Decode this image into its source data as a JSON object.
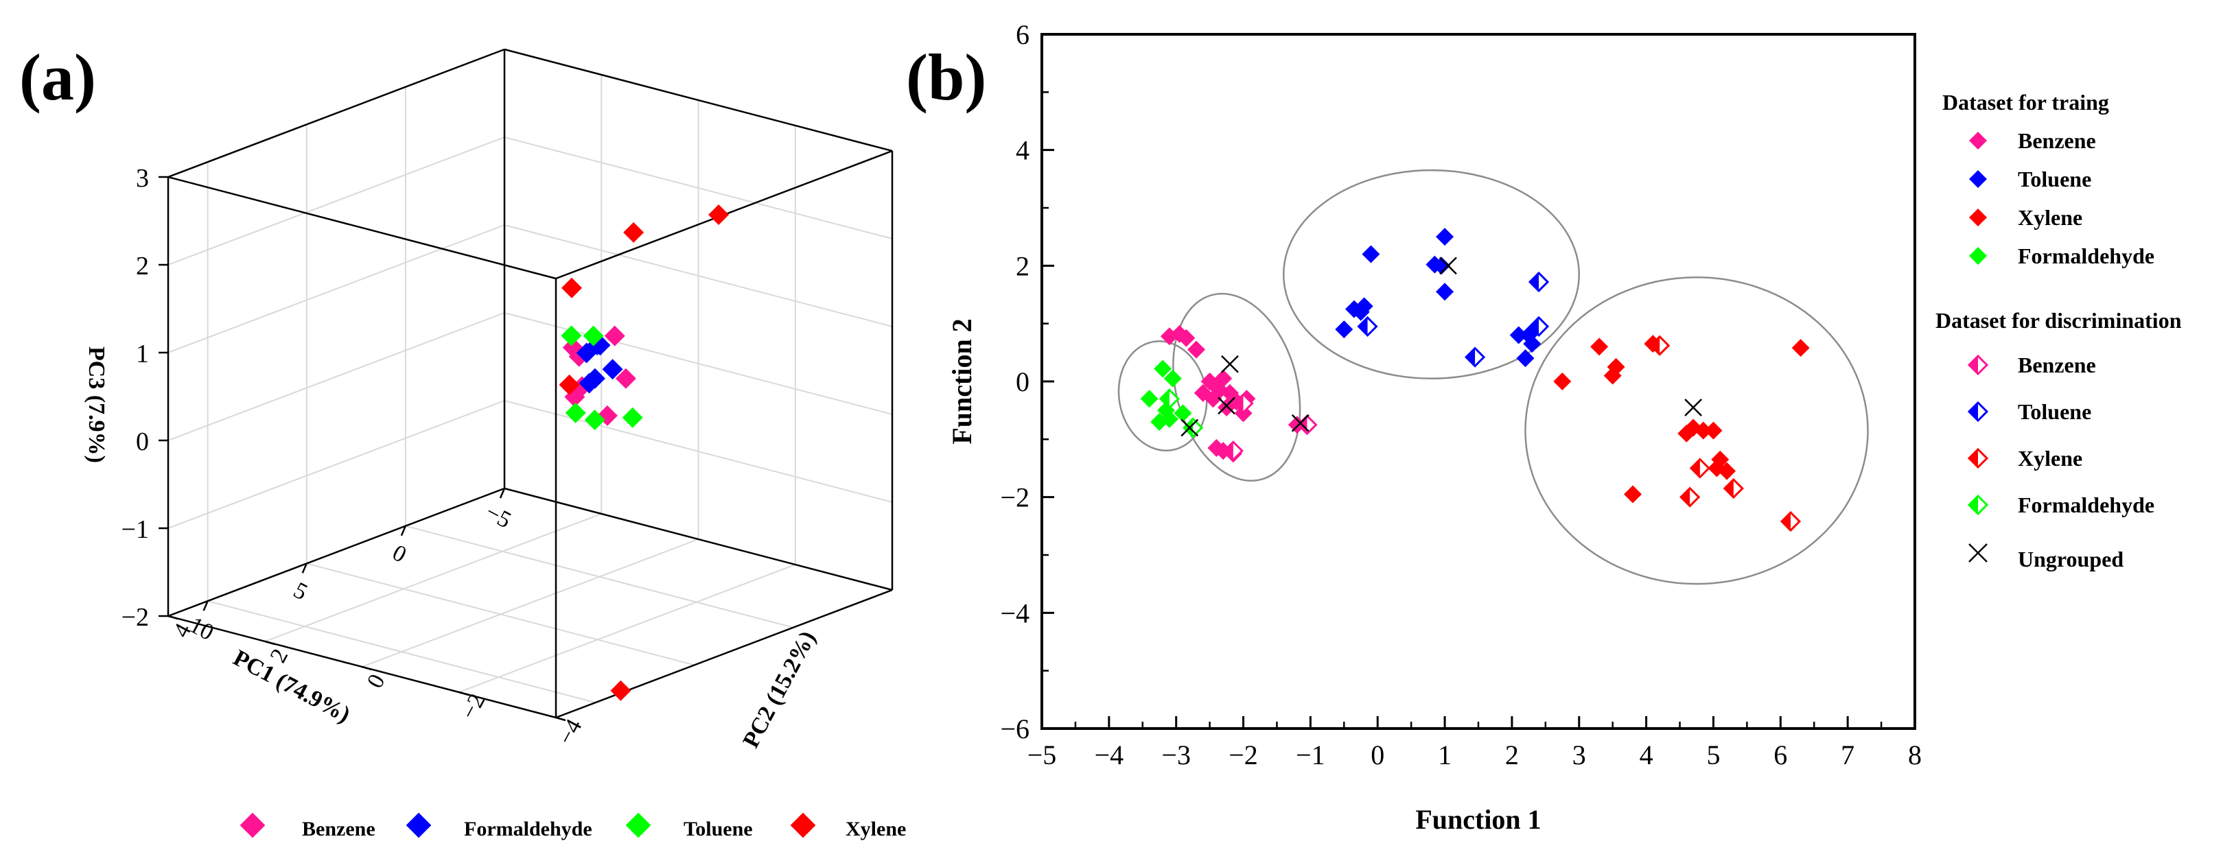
{
  "colors": {
    "benzene": "#ff1493",
    "toluene": "#0000ff",
    "xylene": "#ff0000",
    "formaldehyde": "#00ff00",
    "ungrouped": "#000000",
    "axis": "#000000",
    "grid": "#d9d9d9",
    "ellipse": "#8c8c8c"
  },
  "chart_data": [
    {
      "panel_label": "(a)",
      "type": "scatter3d",
      "title": "",
      "axes": {
        "x": {
          "label": "PC1 (74.9%)",
          "ticks": [
            "−5",
            "0",
            "5",
            "10"
          ],
          "range": [
            -5,
            12
          ]
        },
        "y": {
          "label": "PC2 (15.2%)",
          "ticks": [
            "−4",
            "−2",
            "0",
            "2",
            "4"
          ],
          "range": [
            -4,
            4
          ]
        },
        "z": {
          "label": "PC3 (7.9%)",
          "ticks": [
            "−2",
            "−1",
            "0",
            "1",
            "2",
            "3"
          ],
          "range": [
            -2,
            3
          ]
        }
      },
      "legend": {
        "position": "bottom",
        "items": [
          {
            "name": "Benzene",
            "color": "#ff1493"
          },
          {
            "name": "Formaldehyde",
            "color": "#0000ff"
          },
          {
            "name": "Toluene",
            "color": "#00ff00"
          },
          {
            "name": "Xylene",
            "color": "#ff0000"
          }
        ]
      },
      "series": [
        {
          "name": "Benzene",
          "color": "#ff1493",
          "points": [
            [
              -2.0,
              0.5,
              0.5
            ],
            [
              -0.6,
              -0.3,
              0.25
            ],
            [
              -2.4,
              1.4,
              0.1
            ],
            [
              -1.2,
              1.0,
              -0.2
            ],
            [
              -0.4,
              0.0,
              -0.2
            ],
            [
              -1.6,
              1.2,
              0.3
            ],
            [
              -0.1,
              0.4,
              0.1
            ]
          ]
        },
        {
          "name": "Formaldehyde",
          "color": "#0000ff",
          "points": [
            [
              -2.0,
              0.8,
              0.35
            ],
            [
              -1.6,
              0.7,
              0.4
            ],
            [
              -1.4,
              0.3,
              0.2
            ],
            [
              -1.8,
              1.0,
              0.25
            ],
            [
              -1.0,
              0.5,
              0.1
            ],
            [
              -1.2,
              0.7,
              0.0
            ]
          ]
        },
        {
          "name": "Toluene",
          "color": "#00ff00",
          "points": [
            [
              -2.5,
              1.6,
              0.3
            ],
            [
              -1.9,
              0.9,
              0.45
            ],
            [
              -1.0,
              0.9,
              -0.35
            ],
            [
              -0.5,
              0.3,
              -0.3
            ],
            [
              2.0,
              -1.5,
              0.2
            ]
          ]
        },
        {
          "name": "Xylene",
          "color": "#ff0000",
          "points": [
            [
              -3.5,
              2.0,
              0.7
            ],
            [
              -0.5,
              -0.5,
              1.95
            ],
            [
              5.0,
              -4.5,
              3.2
            ],
            [
              -2.4,
              1.6,
              -0.25
            ],
            [
              7.5,
              -3.5,
              -2.15
            ]
          ]
        }
      ]
    },
    {
      "panel_label": "(b)",
      "type": "scatter",
      "title": "",
      "xlabel": "Function 1",
      "ylabel": "Function 2",
      "xlim": [
        -5,
        8
      ],
      "ylim": [
        -6,
        6
      ],
      "xticks": [
        -5,
        -4,
        -3,
        -2,
        -1,
        0,
        1,
        2,
        3,
        4,
        5,
        6,
        7,
        8
      ],
      "yticks": [
        -6,
        -4,
        -2,
        0,
        2,
        4,
        6
      ],
      "xtick_labels": [
        "−5",
        "−4",
        "−3",
        "−2",
        "−1",
        "0",
        "1",
        "2",
        "3",
        "4",
        "5",
        "6",
        "7",
        "8"
      ],
      "ytick_labels": [
        "−6",
        "−4",
        "−2",
        "0",
        "2",
        "4",
        "6"
      ],
      "legend": {
        "position": "right",
        "group_training": "Dataset for traing",
        "group_discrimination": "Dataset for discrimination",
        "training_items": [
          {
            "name": "Benzene",
            "color": "#ff1493"
          },
          {
            "name": "Toluene",
            "color": "#0000ff"
          },
          {
            "name": "Xylene",
            "color": "#ff0000"
          },
          {
            "name": "Formaldehyde",
            "color": "#00ff00"
          }
        ],
        "discrimination_items": [
          {
            "name": "Benzene",
            "color": "#ff1493"
          },
          {
            "name": "Toluene",
            "color": "#0000ff"
          },
          {
            "name": "Xylene",
            "color": "#ff0000"
          },
          {
            "name": "Formaldehyde",
            "color": "#00ff00"
          }
        ],
        "ungrouped_label": "Ungrouped"
      },
      "group_ellipses": [
        {
          "name": "Formaldehyde",
          "cx": -3.2,
          "cy": -0.25,
          "rx": 0.65,
          "ry": 0.95,
          "rotation": -10
        },
        {
          "name": "Benzene",
          "cx": -2.1,
          "cy": -0.1,
          "rx": 0.9,
          "ry": 1.65,
          "rotation": -15
        },
        {
          "name": "Toluene",
          "cx": 0.8,
          "cy": 1.85,
          "rx": 2.2,
          "ry": 1.8,
          "rotation": 0
        },
        {
          "name": "Xylene",
          "cx": 4.75,
          "cy": -0.85,
          "rx": 2.55,
          "ry": 2.65,
          "rotation": 0
        }
      ],
      "training": [
        {
          "name": "Benzene",
          "color": "#ff1493",
          "points": [
            [
              -3.1,
              0.78
            ],
            [
              -2.95,
              0.82
            ],
            [
              -2.85,
              0.75
            ],
            [
              -2.7,
              0.55
            ],
            [
              -2.5,
              0.0
            ],
            [
              -2.4,
              -0.1
            ],
            [
              -2.3,
              0.05
            ],
            [
              -2.2,
              -0.2
            ],
            [
              -2.45,
              -0.3
            ],
            [
              -2.25,
              -0.45
            ],
            [
              -2.1,
              -0.35
            ],
            [
              -2.0,
              -0.55
            ],
            [
              -1.95,
              -0.3
            ],
            [
              -2.6,
              -0.2
            ],
            [
              -2.35,
              -0.15
            ],
            [
              -2.3,
              -1.2
            ],
            [
              -2.15,
              -1.25
            ],
            [
              -2.4,
              -1.15
            ],
            [
              -1.2,
              -0.75
            ]
          ]
        },
        {
          "name": "Toluene",
          "color": "#0000ff",
          "points": [
            [
              -0.1,
              2.2
            ],
            [
              1.0,
              2.5
            ],
            [
              0.95,
              2.0
            ],
            [
              0.85,
              2.02
            ],
            [
              1.0,
              1.55
            ],
            [
              -0.5,
              0.9
            ],
            [
              -0.35,
              1.25
            ],
            [
              -0.25,
              1.2
            ],
            [
              -0.2,
              1.3
            ],
            [
              2.1,
              0.8
            ],
            [
              2.25,
              0.8
            ],
            [
              2.3,
              0.65
            ],
            [
              2.2,
              0.4
            ]
          ]
        },
        {
          "name": "Xylene",
          "color": "#ff0000",
          "points": [
            [
              3.3,
              0.6
            ],
            [
              4.1,
              0.65
            ],
            [
              6.3,
              0.58
            ],
            [
              3.5,
              0.1
            ],
            [
              3.55,
              0.25
            ],
            [
              2.75,
              0.0
            ],
            [
              4.6,
              -0.9
            ],
            [
              4.7,
              -0.8
            ],
            [
              4.85,
              -0.85
            ],
            [
              5.0,
              -0.85
            ],
            [
              5.1,
              -1.35
            ],
            [
              5.2,
              -1.55
            ],
            [
              5.05,
              -1.5
            ],
            [
              3.8,
              -1.95
            ]
          ]
        },
        {
          "name": "Formaldehyde",
          "color": "#00ff00",
          "points": [
            [
              -3.2,
              0.22
            ],
            [
              -3.05,
              0.05
            ],
            [
              -3.4,
              -0.3
            ],
            [
              -3.15,
              -0.5
            ],
            [
              -3.25,
              -0.7
            ],
            [
              -3.1,
              -0.65
            ],
            [
              -2.9,
              -0.55
            ]
          ]
        }
      ],
      "discrimination": [
        {
          "name": "Benzene",
          "color": "#ff1493",
          "points": [
            [
              -2.15,
              -1.2
            ],
            [
              -1.05,
              -0.75
            ],
            [
              -2.0,
              -0.38
            ]
          ]
        },
        {
          "name": "Toluene",
          "color": "#0000ff",
          "points": [
            [
              2.4,
              1.72
            ],
            [
              1.45,
              0.42
            ],
            [
              -0.15,
              0.95
            ],
            [
              2.4,
              0.95
            ]
          ]
        },
        {
          "name": "Xylene",
          "color": "#ff0000",
          "points": [
            [
              4.2,
              0.62
            ],
            [
              4.8,
              -1.5
            ],
            [
              4.65,
              -2.0
            ],
            [
              5.3,
              -1.85
            ],
            [
              6.15,
              -2.42
            ]
          ]
        },
        {
          "name": "Formaldehyde",
          "color": "#00ff00",
          "points": [
            [
              -2.75,
              -0.8
            ],
            [
              -3.1,
              -0.3
            ]
          ]
        }
      ],
      "ungrouped": [
        [
          -2.8,
          -0.8
        ],
        [
          -2.2,
          0.3
        ],
        [
          -2.25,
          -0.42
        ],
        [
          1.05,
          2.0
        ],
        [
          4.7,
          -0.45
        ],
        [
          -1.15,
          -0.72
        ]
      ]
    }
  ]
}
